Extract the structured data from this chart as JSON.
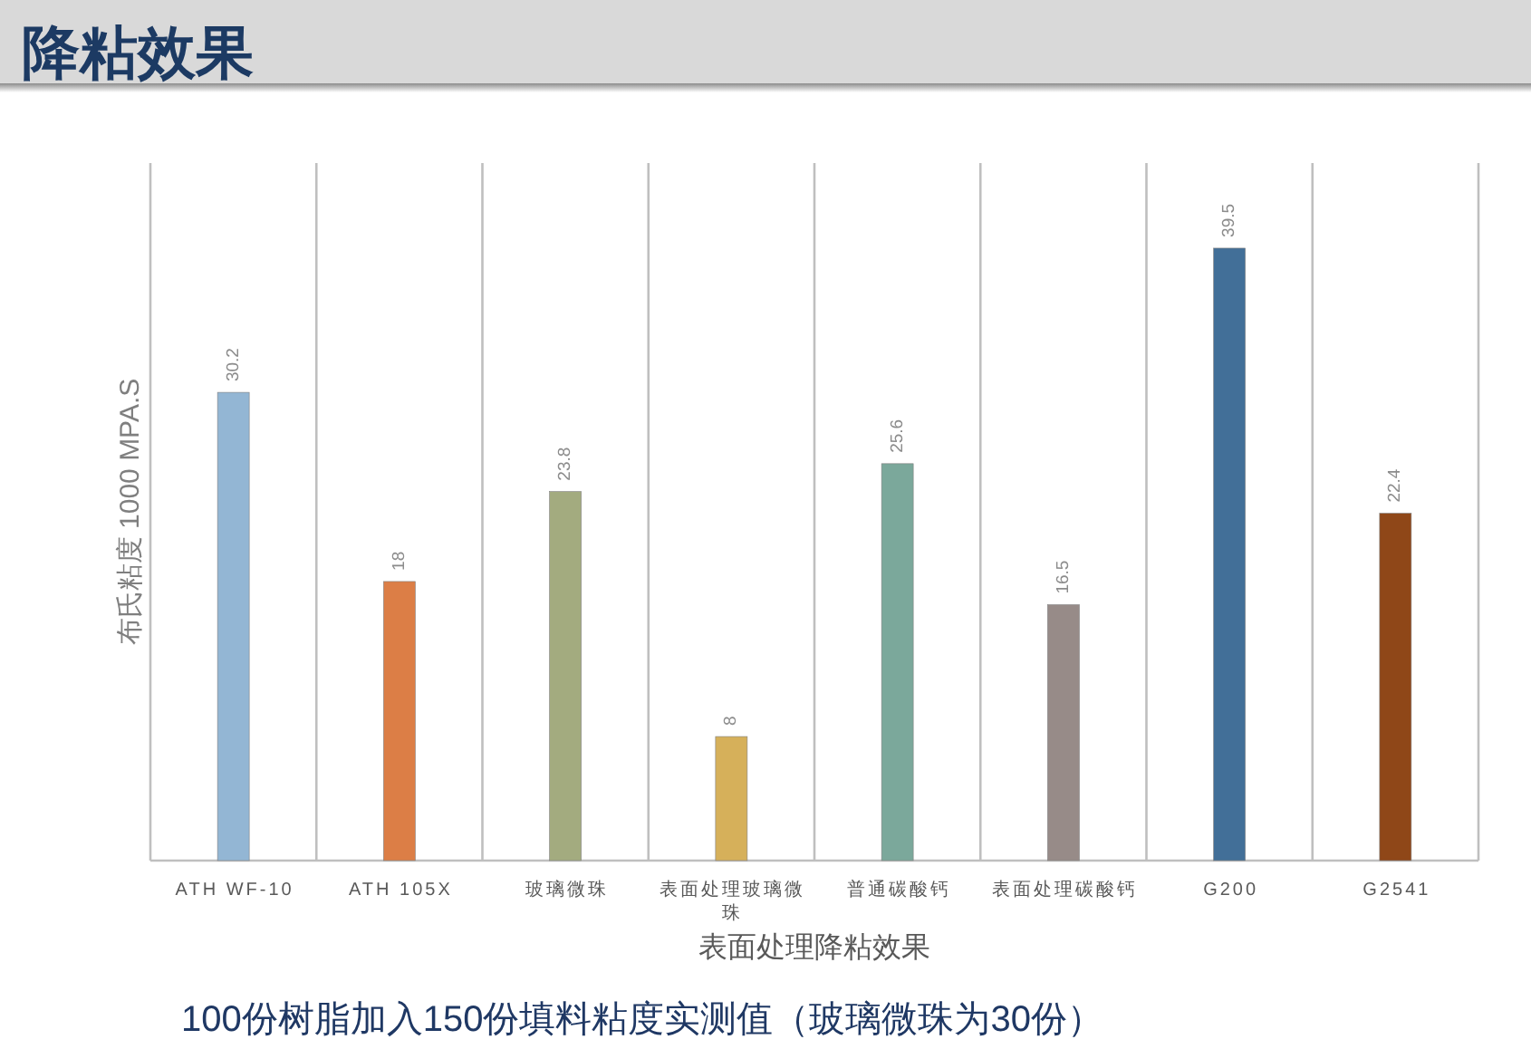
{
  "chart_data": {
    "type": "bar",
    "title": "降粘效果",
    "ylabel": "布氏粘度 1000 MPA.S",
    "xlabel": "表面处理降粘效果",
    "categories": [
      "ATH WF-10",
      "ATH 105X",
      "玻璃微珠",
      "表面处理玻璃微珠",
      "普通碳酸钙",
      "表面处理碳酸钙",
      "G200",
      "G2541"
    ],
    "values": [
      30.2,
      18,
      23.8,
      8,
      25.6,
      16.5,
      39.5,
      22.4
    ],
    "colors": [
      "#93b6d4",
      "#dc7e46",
      "#a3ab7f",
      "#d6b05a",
      "#7ba89b",
      "#978b88",
      "#426f98",
      "#8f4718"
    ],
    "data_labels": true,
    "grid": "x",
    "tick_labels": "x",
    "annotations": [
      "100份树脂加入150份填料粘度实测值（玻璃微珠为30份）"
    ]
  }
}
